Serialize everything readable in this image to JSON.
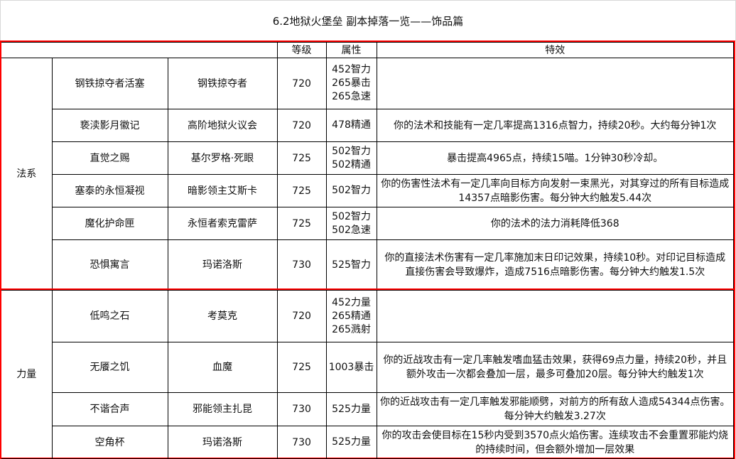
{
  "title": "6.2地狱火堡垒 副本掉落一览——饰品篇",
  "header": {
    "level": "等级",
    "stats": "属性",
    "effect": "特效"
  },
  "groups": [
    {
      "category": "法系",
      "rows": [
        {
          "item": "钢铁掠夺者活塞",
          "boss": "钢铁掠夺者",
          "level": "720",
          "stats": "452智力\n265暴击\n265急速",
          "effect": ""
        },
        {
          "item": "亵渎影月徽记",
          "boss": "高阶地狱火议会",
          "level": "720",
          "stats": "478精通",
          "effect": "你的法术和技能有一定几率提高1316点智力，持续20秒。大约每分钟1次"
        },
        {
          "item": "直觉之赐",
          "boss": "基尔罗格·死眼",
          "level": "725",
          "stats": "502智力\n502精通",
          "effect": "暴击提高4965点，持续15喵。1分钟30秒冷却。"
        },
        {
          "item": "塞泰的永恒凝视",
          "boss": "暗影领主艾斯卡",
          "level": "725",
          "stats": "502智力",
          "effect": "你的伤害性法术有一定几率向目标方向发射一束黑光，对其穿过的所有目标造成14357点暗影伤害。每分钟大约触发5.44次"
        },
        {
          "item": "魔化护命匣",
          "boss": "永恒者索克雷萨",
          "level": "725",
          "stats": "502智力\n502急速",
          "effect": "你的法术的法力消耗降低368"
        },
        {
          "item": "恐惧寓言",
          "boss": "玛诺洛斯",
          "level": "730",
          "stats": "525智力",
          "effect": "你的直接法术伤害有一定几率施加末日印记效果，持续10秒。对印记目标造成直接伤害会导致爆炸，造成7516点暗影伤害。每分钟大约触发1.5次"
        }
      ]
    },
    {
      "category": "力量",
      "rows": [
        {
          "item": "低鸣之石",
          "boss": "考莫克",
          "level": "720",
          "stats": "452力量\n265精通\n265溅射",
          "effect": ""
        },
        {
          "item": "无餍之饥",
          "boss": "血魔",
          "level": "725",
          "stats": "1003暴击",
          "effect": "你的近战攻击有一定几率触发嗜血猛击效果，获得69点力量，持续20秒，并且额外攻击一次都会叠加一层，最多可叠加20层。每分钟大约触发1次"
        },
        {
          "item": "不谐合声",
          "boss": "邪能领主扎昆",
          "level": "730",
          "stats": "525力量",
          "effect": "你的近战攻击有一定几率触发邪能顺劈，对前方的所有敌人造成54344点伤害。每分钟大约触发3.27次"
        },
        {
          "item": "空角杯",
          "boss": "玛诺洛斯",
          "level": "730",
          "stats": "525力量",
          "effect": "你的攻击会使目标在15秒内受到3570点火焰伤害。连续攻击不会重置邪能灼烧的持续时间，但会额外增加一层效果"
        }
      ]
    }
  ],
  "colors": {
    "group_border": "#ff0000",
    "grid": "#000000"
  }
}
